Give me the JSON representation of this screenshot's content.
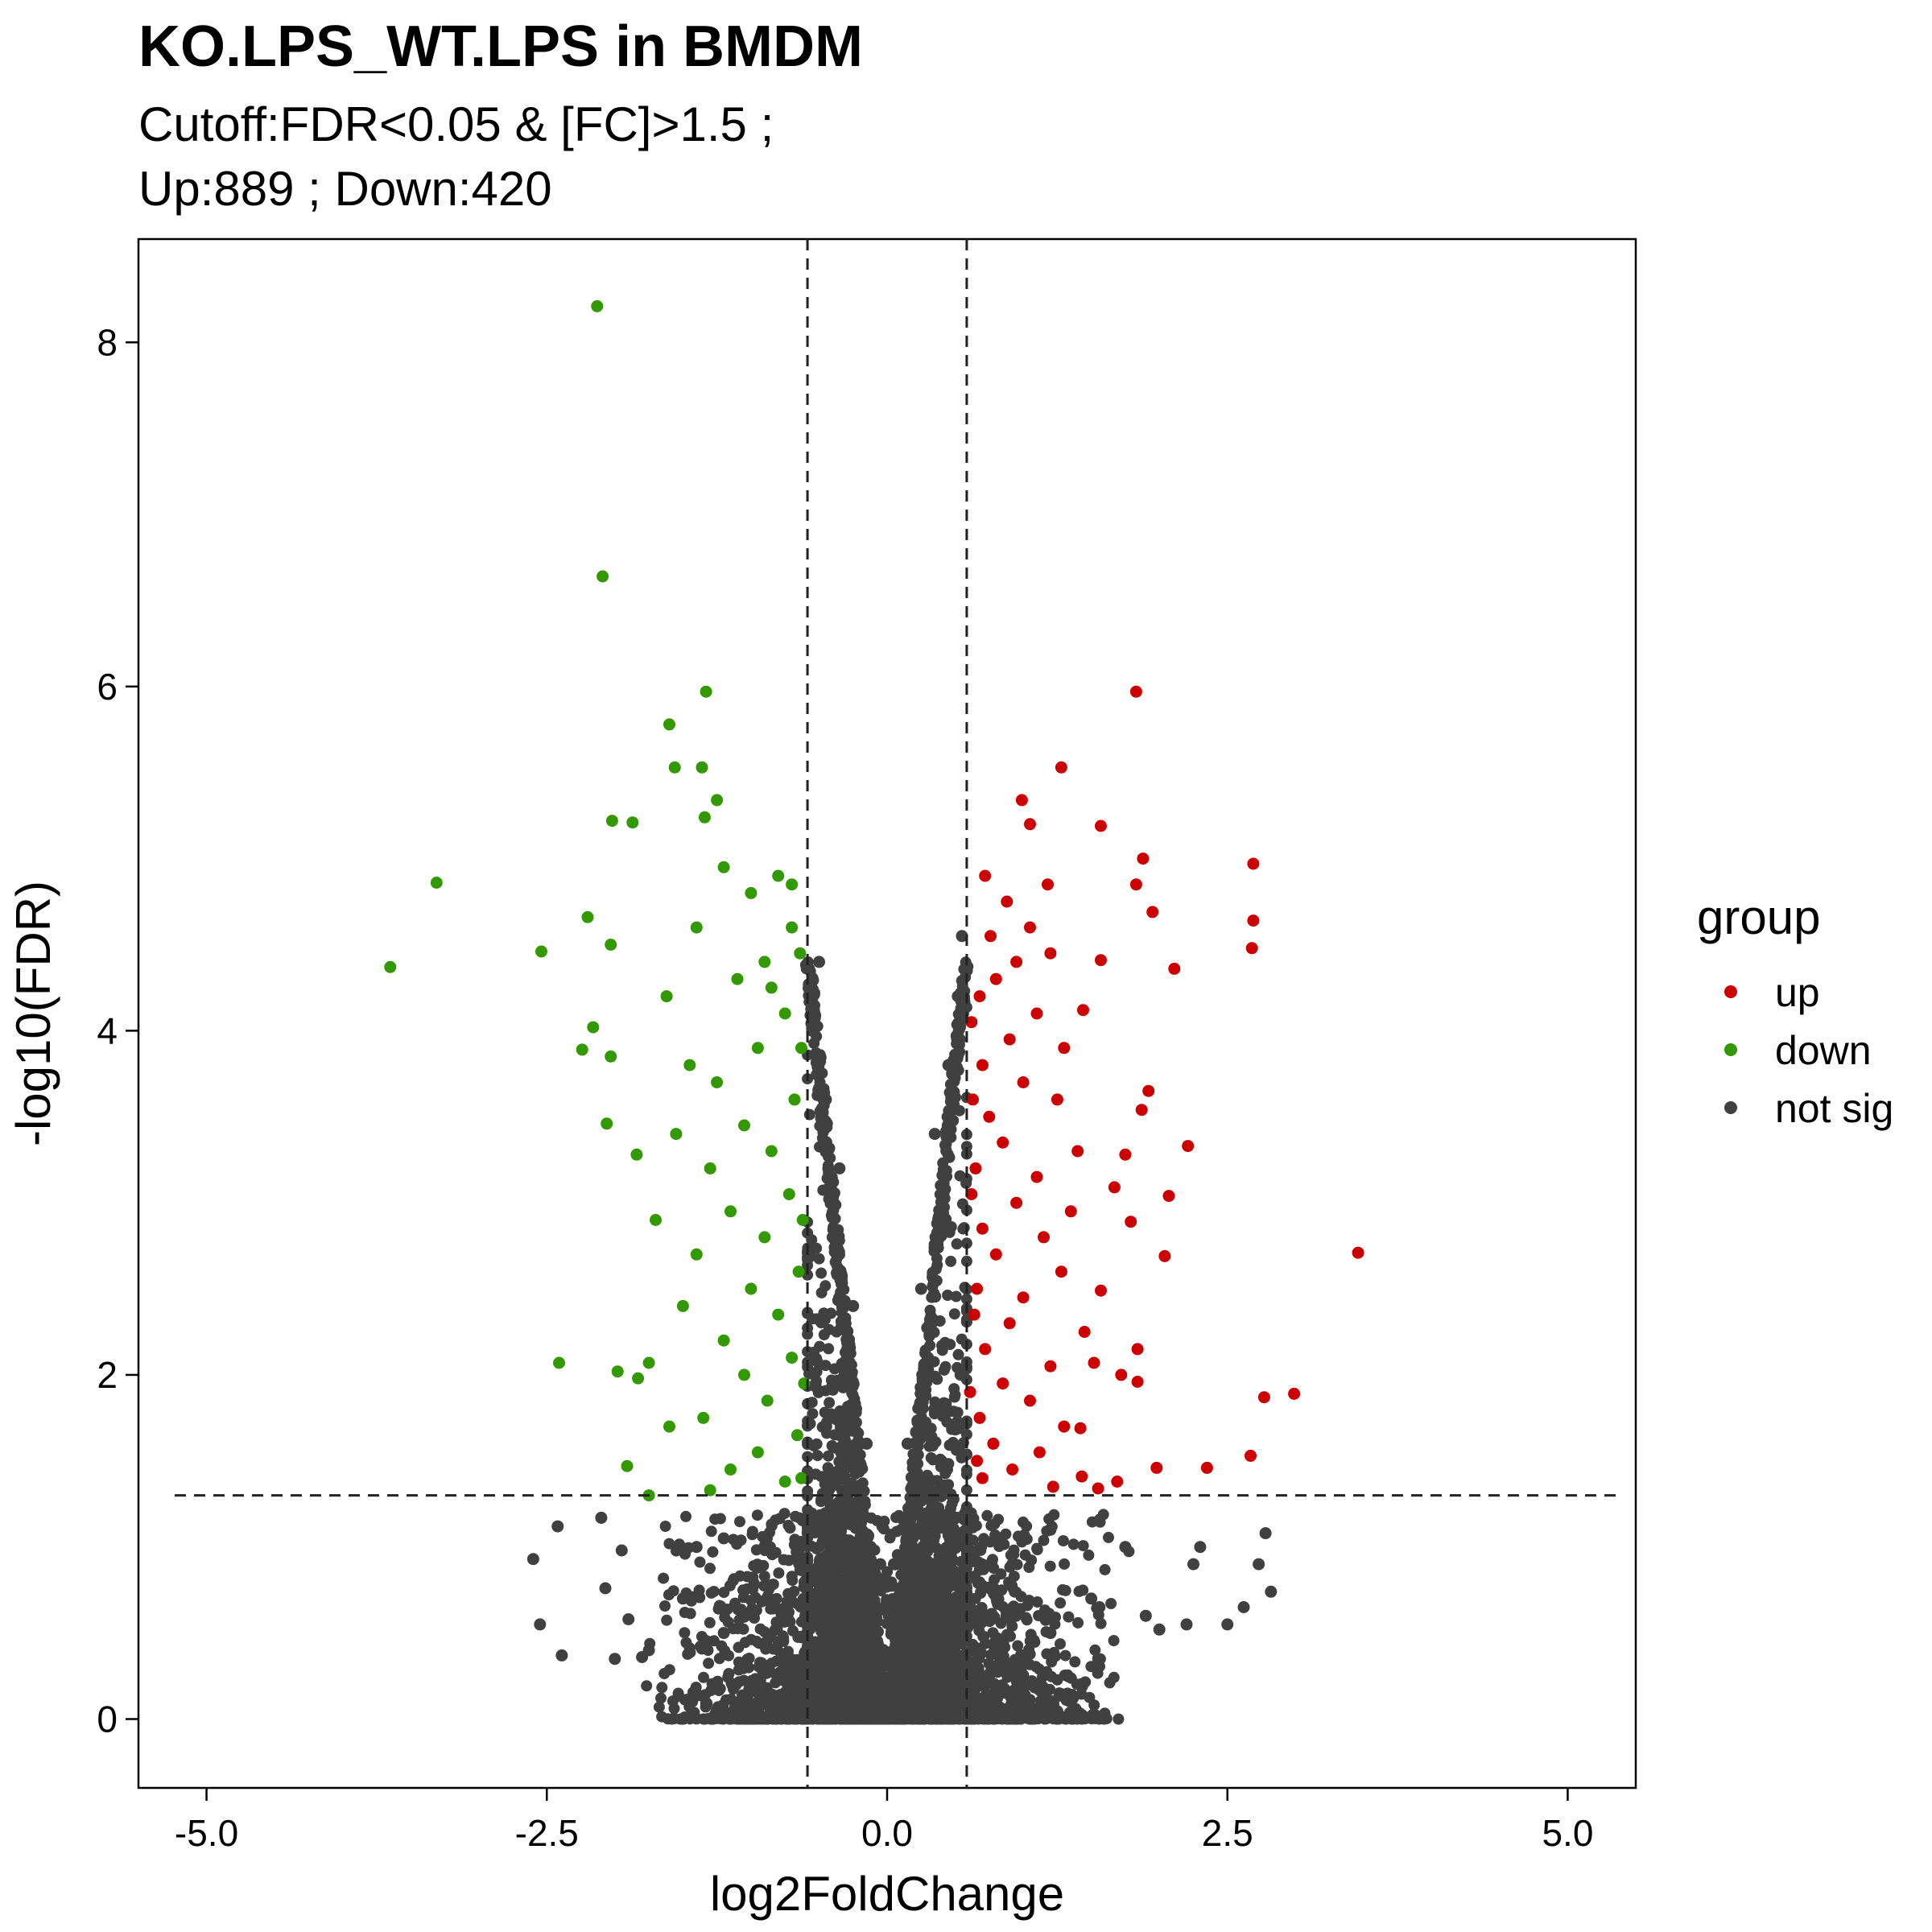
{
  "chart_data": {
    "type": "scatter",
    "title": "KO.LPS_WT.LPS in BMDM",
    "subtitle": [
      "Cutoff:FDR<0.05 & [FC]>1.5 ;",
      "Up:889 ; Down:420"
    ],
    "xlabel": "log2FoldChange",
    "ylabel": "-log10(FDR)",
    "xlim": [
      -5.5,
      5.5
    ],
    "ylim": [
      -0.4,
      8.6
    ],
    "xticks": [
      -5.0,
      -2.5,
      0.0,
      2.5,
      5.0
    ],
    "xtick_labels": [
      "-5.0",
      "-2.5",
      "0.0",
      "2.5",
      "5.0"
    ],
    "yticks": [
      0,
      2,
      4,
      6,
      8
    ],
    "ytick_labels": [
      "0",
      "2",
      "4",
      "6",
      "8"
    ],
    "cutoff_lines": {
      "x": [
        -0.585,
        0.585
      ],
      "y": 1.3
    },
    "grid": false,
    "legend": {
      "title": "group",
      "placement": "right",
      "entries": [
        {
          "label": "up",
          "color": "#cc0000"
        },
        {
          "label": "down",
          "color": "#339900"
        },
        {
          "label": "not sig",
          "color": "#404040"
        }
      ]
    },
    "series": [
      {
        "name": "up",
        "color": "#cc0000",
        "points": [
          [
            1.83,
            5.97
          ],
          [
            1.28,
            5.53
          ],
          [
            0.99,
            5.34
          ],
          [
            1.57,
            5.19
          ],
          [
            1.88,
            5.0
          ],
          [
            2.69,
            4.97
          ],
          [
            1.83,
            4.85
          ],
          [
            1.95,
            4.69
          ],
          [
            2.69,
            4.64
          ],
          [
            2.68,
            4.48
          ],
          [
            2.11,
            4.36
          ],
          [
            1.57,
            4.41
          ],
          [
            1.44,
            4.12
          ],
          [
            1.92,
            3.65
          ],
          [
            1.87,
            3.54
          ],
          [
            2.21,
            3.33
          ],
          [
            1.75,
            3.28
          ],
          [
            1.67,
            3.09
          ],
          [
            2.07,
            3.04
          ],
          [
            1.79,
            2.89
          ],
          [
            2.04,
            2.69
          ],
          [
            3.46,
            2.71
          ],
          [
            1.57,
            2.49
          ],
          [
            1.84,
            2.15
          ],
          [
            1.52,
            2.07
          ],
          [
            1.72,
            2.0
          ],
          [
            1.84,
            1.96
          ],
          [
            2.77,
            1.87
          ],
          [
            2.99,
            1.89
          ],
          [
            1.42,
            1.69
          ],
          [
            2.67,
            1.53
          ],
          [
            1.98,
            1.46
          ],
          [
            2.35,
            1.46
          ],
          [
            1.43,
            1.41
          ],
          [
            1.69,
            1.38
          ],
          [
            1.55,
            1.34
          ],
          [
            0.72,
            4.9
          ],
          [
            0.88,
            4.75
          ],
          [
            1.05,
            4.6
          ],
          [
            0.95,
            4.4
          ],
          [
            1.2,
            4.45
          ],
          [
            0.8,
            4.3
          ],
          [
            0.68,
            4.2
          ],
          [
            1.1,
            4.1
          ],
          [
            0.9,
            3.95
          ],
          [
            1.3,
            3.9
          ],
          [
            0.7,
            3.8
          ],
          [
            1.0,
            3.7
          ],
          [
            1.25,
            3.6
          ],
          [
            0.75,
            3.5
          ],
          [
            0.85,
            3.35
          ],
          [
            1.4,
            3.3
          ],
          [
            0.65,
            3.2
          ],
          [
            1.1,
            3.15
          ],
          [
            0.95,
            3.0
          ],
          [
            1.35,
            2.95
          ],
          [
            0.7,
            2.85
          ],
          [
            1.15,
            2.8
          ],
          [
            0.8,
            2.7
          ],
          [
            1.28,
            2.6
          ],
          [
            0.66,
            2.5
          ],
          [
            1.0,
            2.45
          ],
          [
            0.9,
            2.3
          ],
          [
            1.45,
            2.25
          ],
          [
            0.72,
            2.15
          ],
          [
            1.2,
            2.05
          ],
          [
            0.85,
            1.95
          ],
          [
            1.05,
            1.85
          ],
          [
            0.68,
            1.75
          ],
          [
            1.3,
            1.7
          ],
          [
            0.78,
            1.6
          ],
          [
            1.12,
            1.55
          ],
          [
            0.92,
            1.45
          ],
          [
            0.7,
            1.4
          ],
          [
            1.22,
            1.35
          ],
          [
            0.62,
            3.05
          ],
          [
            0.64,
            2.35
          ],
          [
            0.61,
            1.9
          ],
          [
            0.63,
            3.6
          ],
          [
            0.62,
            4.05
          ],
          [
            0.66,
            1.5
          ],
          [
            0.76,
            4.55
          ],
          [
            1.05,
            5.2
          ],
          [
            1.18,
            4.85
          ]
        ]
      },
      {
        "name": "down",
        "color": "#339900",
        "points": [
          [
            -2.13,
            8.21
          ],
          [
            -2.09,
            6.64
          ],
          [
            -1.33,
            5.97
          ],
          [
            -1.6,
            5.78
          ],
          [
            -1.56,
            5.53
          ],
          [
            -1.36,
            5.53
          ],
          [
            -1.25,
            5.34
          ],
          [
            -2.02,
            5.22
          ],
          [
            -1.87,
            5.21
          ],
          [
            -1.34,
            5.24
          ],
          [
            -3.31,
            4.86
          ],
          [
            -2.2,
            4.66
          ],
          [
            -3.65,
            4.37
          ],
          [
            -2.54,
            4.46
          ],
          [
            -2.03,
            4.5
          ],
          [
            -2.16,
            4.02
          ],
          [
            -2.24,
            3.89
          ],
          [
            -2.03,
            3.85
          ],
          [
            -2.06,
            3.46
          ],
          [
            -1.84,
            3.28
          ],
          [
            -2.41,
            2.07
          ],
          [
            -1.98,
            2.02
          ],
          [
            -1.83,
            1.98
          ],
          [
            -1.75,
            2.07
          ],
          [
            -1.91,
            1.47
          ],
          [
            -1.75,
            1.3
          ],
          [
            -1.6,
            1.7
          ],
          [
            -1.5,
            2.4
          ],
          [
            -1.7,
            2.9
          ],
          [
            -1.55,
            3.4
          ],
          [
            -1.45,
            3.8
          ],
          [
            -1.62,
            4.2
          ],
          [
            -1.4,
            4.6
          ],
          [
            -1.2,
            4.95
          ],
          [
            -1.0,
            4.8
          ],
          [
            -0.8,
            4.9
          ],
          [
            -0.7,
            4.6
          ],
          [
            -0.9,
            4.4
          ],
          [
            -1.1,
            4.3
          ],
          [
            -0.75,
            4.1
          ],
          [
            -0.95,
            3.9
          ],
          [
            -1.25,
            3.7
          ],
          [
            -0.68,
            3.6
          ],
          [
            -1.05,
            3.45
          ],
          [
            -0.85,
            3.3
          ],
          [
            -1.3,
            3.2
          ],
          [
            -0.72,
            3.05
          ],
          [
            -1.15,
            2.95
          ],
          [
            -0.9,
            2.8
          ],
          [
            -1.4,
            2.7
          ],
          [
            -0.65,
            2.6
          ],
          [
            -1.0,
            2.5
          ],
          [
            -0.8,
            2.35
          ],
          [
            -1.2,
            2.2
          ],
          [
            -0.7,
            2.1
          ],
          [
            -1.05,
            2.0
          ],
          [
            -0.88,
            1.85
          ],
          [
            -1.35,
            1.75
          ],
          [
            -0.66,
            1.65
          ],
          [
            -0.95,
            1.55
          ],
          [
            -1.15,
            1.45
          ],
          [
            -0.75,
            1.38
          ],
          [
            -1.3,
            1.33
          ],
          [
            -0.62,
            2.9
          ],
          [
            -0.63,
            3.9
          ],
          [
            -0.61,
            1.95
          ],
          [
            -0.64,
            4.45
          ],
          [
            -0.63,
            1.4
          ],
          [
            -0.7,
            4.85
          ],
          [
            -0.85,
            4.25
          ]
        ]
      },
      {
        "name": "not sig",
        "color": "#404040",
        "points": [
          [
            -2.6,
            0.93
          ],
          [
            -2.42,
            1.12
          ],
          [
            -2.55,
            0.55
          ],
          [
            -2.39,
            0.37
          ],
          [
            -2.07,
            0.76
          ],
          [
            -2.1,
            1.17
          ],
          [
            -1.95,
            0.98
          ],
          [
            -1.9,
            0.58
          ],
          [
            -1.8,
            0.36
          ],
          [
            -1.75,
            0.4
          ],
          [
            -2.0,
            0.35
          ],
          [
            -1.4,
            1.0
          ],
          [
            -1.2,
            1.05
          ],
          [
            0.92,
            0.9
          ],
          [
            1.2,
            1.1
          ],
          [
            1.56,
            0.65
          ],
          [
            1.75,
            1.0
          ],
          [
            1.9,
            0.6
          ],
          [
            2.0,
            0.52
          ],
          [
            2.2,
            0.55
          ],
          [
            2.25,
            0.9
          ],
          [
            2.3,
            1.0
          ],
          [
            2.5,
            0.55
          ],
          [
            2.62,
            0.65
          ],
          [
            2.73,
            0.9
          ],
          [
            2.78,
            1.08
          ],
          [
            2.82,
            0.74
          ],
          [
            -0.5,
            4.4
          ],
          [
            0.55,
            4.55
          ],
          [
            -0.45,
            3.6
          ],
          [
            0.45,
            3.8
          ],
          [
            -0.4,
            2.8
          ],
          [
            0.4,
            2.9
          ],
          [
            -0.3,
            2.0
          ],
          [
            0.3,
            2.1
          ],
          [
            -0.2,
            1.2
          ],
          [
            0.2,
            1.2
          ],
          [
            -0.1,
            0.5
          ],
          [
            0.1,
            0.5
          ],
          [
            -0.6,
            0.6
          ],
          [
            0.6,
            0.6
          ],
          [
            -0.9,
            0.3
          ],
          [
            0.9,
            0.3
          ],
          [
            -1.2,
            0.5
          ],
          [
            1.2,
            0.5
          ],
          [
            -1.5,
            0.7
          ],
          [
            1.5,
            0.7
          ],
          [
            -0.55,
            4.0
          ],
          [
            0.52,
            4.2
          ],
          [
            -0.35,
            3.2
          ],
          [
            0.35,
            3.4
          ],
          [
            -0.25,
            2.4
          ],
          [
            0.25,
            2.5
          ],
          [
            -0.15,
            1.6
          ],
          [
            0.15,
            1.6
          ],
          [
            -0.05,
            0.9
          ],
          [
            0.05,
            0.9
          ]
        ]
      }
    ]
  }
}
